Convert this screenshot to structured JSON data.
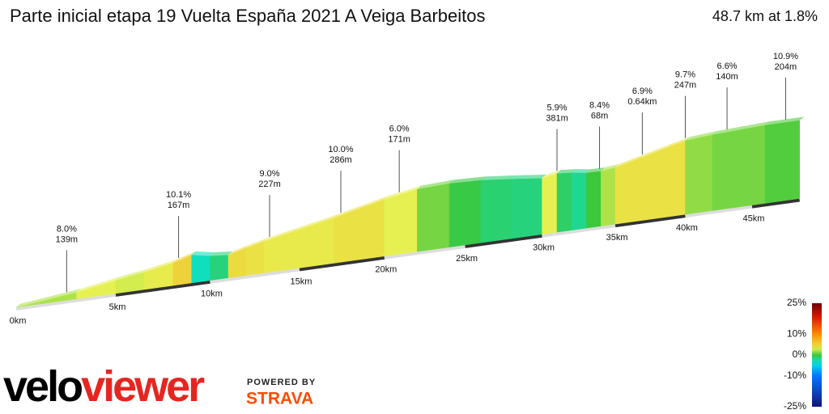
{
  "chart_data": {
    "type": "profile",
    "title": "Parte inicial etapa 19 Vuelta España 2021 A Veiga Barbeitos",
    "subtitle": "48.7 km at 1.8%",
    "xlim": [
      0,
      48.7
    ],
    "xticks": [
      {
        "value": 0,
        "label": "0km"
      },
      {
        "value": 5,
        "label": "5km"
      },
      {
        "value": 10,
        "label": "10km"
      },
      {
        "value": 15,
        "label": "15km"
      },
      {
        "value": 20,
        "label": "20km"
      },
      {
        "value": 25,
        "label": "25km"
      },
      {
        "value": 30,
        "label": "30km"
      },
      {
        "value": 35,
        "label": "35km"
      },
      {
        "value": 40,
        "label": "40km"
      },
      {
        "value": 45,
        "label": "45km"
      }
    ],
    "x": [
      0,
      3,
      5,
      6.5,
      8,
      9,
      10,
      11,
      12,
      13,
      15,
      17,
      19,
      20,
      22,
      24,
      26,
      28,
      30,
      31,
      32,
      33,
      34,
      35,
      37,
      39,
      40,
      42,
      44,
      46,
      48.7
    ],
    "elevation": [
      0,
      60,
      120,
      160,
      210,
      260,
      230,
      215,
      260,
      300,
      370,
      440,
      520,
      560,
      620,
      640,
      635,
      610,
      580,
      610,
      600,
      580,
      580,
      600,
      680,
      760,
      800,
      830,
      850,
      870,
      880
    ],
    "annotations": [
      {
        "x": 2.5,
        "grade": "8.0%",
        "length": "139m"
      },
      {
        "x": 8.3,
        "grade": "10.1%",
        "length": "167m"
      },
      {
        "x": 13.3,
        "grade": "9.0%",
        "length": "227m"
      },
      {
        "x": 17.4,
        "grade": "10.0%",
        "length": "286m"
      },
      {
        "x": 20.9,
        "grade": "6.0%",
        "length": "171m"
      },
      {
        "x": 31.0,
        "grade": "5.9%",
        "length": "381m"
      },
      {
        "x": 33.9,
        "grade": "8.4%",
        "length": "68m"
      },
      {
        "x": 36.9,
        "grade": "6.9%",
        "length": "0.64km"
      },
      {
        "x": 40.0,
        "grade": "9.7%",
        "length": "247m"
      },
      {
        "x": 43.1,
        "grade": "6.6%",
        "length": "140m"
      },
      {
        "x": 47.6,
        "grade": "10.9%",
        "length": "204m"
      }
    ],
    "colorbar_ticks": [
      {
        "value": 25,
        "label": "25%"
      },
      {
        "value": 10,
        "label": "10%"
      },
      {
        "value": 0,
        "label": "0%"
      },
      {
        "value": -10,
        "label": "-10%"
      },
      {
        "value": -25,
        "label": "-25%"
      }
    ],
    "brand": {
      "velo": "velo",
      "viewer": "viewer",
      "powered": "POWERED BY",
      "strava": "STRAVA"
    }
  }
}
